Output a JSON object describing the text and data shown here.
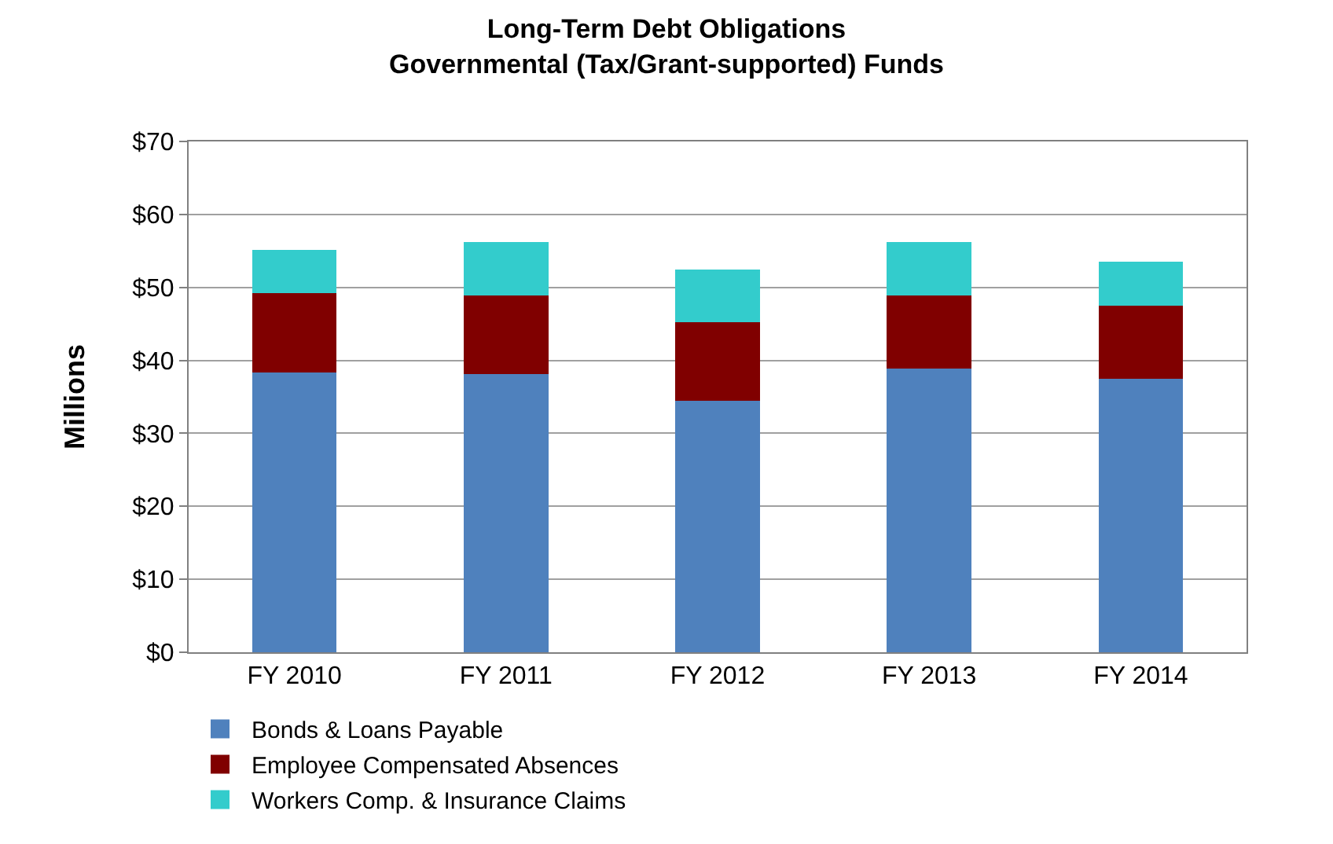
{
  "chart_data": {
    "type": "bar",
    "title": "Long-Term Debt Obligations\nGovernmental (Tax/Grant-supported) Funds",
    "ylabel": "Millions",
    "categories": [
      "FY 2010",
      "FY 2011",
      "FY 2012",
      "FY 2013",
      "FY 2014"
    ],
    "series": [
      {
        "name": "Bonds & Loans Payable",
        "color": "#4f81bd",
        "values": [
          38.3,
          38.1,
          34.5,
          38.9,
          37.5
        ]
      },
      {
        "name": "Employee Compensated Absences",
        "color": "#800000",
        "values": [
          10.9,
          10.8,
          10.7,
          10.0,
          10.0
        ]
      },
      {
        "name": "Workers Comp. & Insurance Claims",
        "color": "#33cccc",
        "values": [
          5.9,
          7.3,
          7.2,
          7.3,
          6.0
        ]
      }
    ],
    "stacked": true,
    "ylim": [
      0,
      70
    ],
    "yticks": [
      {
        "value": 0,
        "label": "$0"
      },
      {
        "value": 10,
        "label": "$10"
      },
      {
        "value": 20,
        "label": "$20"
      },
      {
        "value": 30,
        "label": "$30"
      },
      {
        "value": 40,
        "label": "$40"
      },
      {
        "value": 50,
        "label": "$50"
      },
      {
        "value": 60,
        "label": "$60"
      },
      {
        "value": 70,
        "label": "$70"
      }
    ],
    "grid": "y",
    "legend": "bottom"
  }
}
